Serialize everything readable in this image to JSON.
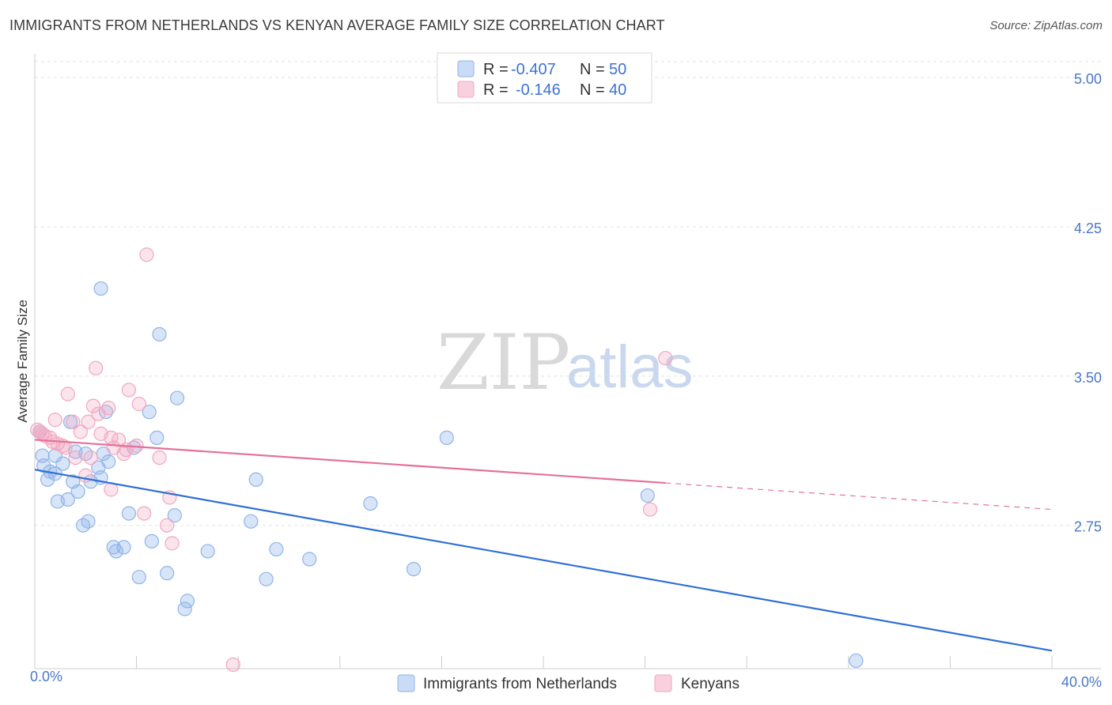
{
  "header": {
    "title": "IMMIGRANTS FROM NETHERLANDS VS KENYAN AVERAGE FAMILY SIZE CORRELATION CHART",
    "source": "Source: ZipAtlas.com"
  },
  "watermark": {
    "zip": "ZIP",
    "atlas": "atlas"
  },
  "legend_box": {
    "rows": [
      {
        "r_label": "R =",
        "r_value": "-0.407",
        "n_label": "N =",
        "n_value": "50",
        "color": "#8fb4ea"
      },
      {
        "r_label": "R =",
        "r_value": "-0.146",
        "n_label": "N =",
        "n_value": "40",
        "color": "#f2a7bf"
      }
    ]
  },
  "chart_data": {
    "type": "scatter",
    "title": "IMMIGRANTS FROM NETHERLANDS VS KENYAN AVERAGE FAMILY SIZE CORRELATION CHART",
    "xlabel": "",
    "ylabel": "Average Family Size",
    "xlim": [
      0,
      40
    ],
    "ylim": [
      2.03,
      5.08
    ],
    "x_tick_labels": [
      "0.0%",
      "40.0%"
    ],
    "y_ticks": [
      2.75,
      3.5,
      4.25,
      5.0
    ],
    "y_tick_labels": [
      "2.75",
      "3.50",
      "4.25",
      "5.00"
    ],
    "legend_position": "bottom",
    "series": [
      {
        "name": "Immigrants from Netherlands",
        "color": "#8fb4ea",
        "line_color": "#2f6fd4",
        "trend": {
          "x": [
            0,
            40
          ],
          "y": [
            3.03,
            2.12
          ],
          "dashed_from": null
        },
        "points": [
          [
            0.2,
            3.22
          ],
          [
            0.3,
            3.1
          ],
          [
            0.35,
            3.05
          ],
          [
            0.5,
            2.98
          ],
          [
            0.6,
            3.02
          ],
          [
            0.8,
            3.01
          ],
          [
            0.8,
            3.1
          ],
          [
            0.9,
            2.87
          ],
          [
            1.1,
            3.06
          ],
          [
            1.3,
            2.88
          ],
          [
            1.4,
            3.27
          ],
          [
            1.5,
            2.97
          ],
          [
            1.7,
            2.92
          ],
          [
            1.9,
            2.75
          ],
          [
            2.0,
            3.11
          ],
          [
            2.1,
            2.77
          ],
          [
            2.2,
            2.97
          ],
          [
            2.5,
            3.04
          ],
          [
            2.6,
            2.99
          ],
          [
            2.7,
            3.11
          ],
          [
            2.8,
            3.32
          ],
          [
            3.1,
            2.64
          ],
          [
            3.2,
            2.62
          ],
          [
            3.5,
            2.64
          ],
          [
            3.7,
            2.81
          ],
          [
            3.9,
            3.14
          ],
          [
            4.1,
            2.49
          ],
          [
            4.5,
            3.32
          ],
          [
            4.6,
            2.67
          ],
          [
            4.8,
            3.19
          ],
          [
            5.2,
            2.51
          ],
          [
            5.5,
            2.8
          ],
          [
            5.9,
            2.33
          ],
          [
            6.0,
            2.37
          ],
          [
            6.8,
            2.62
          ],
          [
            8.5,
            2.77
          ],
          [
            9.1,
            2.48
          ],
          [
            9.5,
            2.63
          ],
          [
            10.8,
            2.58
          ],
          [
            13.2,
            2.86
          ],
          [
            14.9,
            2.53
          ],
          [
            16.2,
            3.19
          ],
          [
            24.1,
            2.9
          ],
          [
            32.3,
            2.07
          ],
          [
            2.9,
            3.07
          ],
          [
            4.9,
            3.71
          ],
          [
            5.6,
            3.39
          ],
          [
            2.6,
            3.94
          ],
          [
            8.7,
            2.98
          ],
          [
            1.6,
            3.12
          ]
        ]
      },
      {
        "name": "Kenyans",
        "color": "#f2a7bf",
        "line_color": "#e5709a",
        "trend": {
          "x": [
            0,
            40
          ],
          "y": [
            3.18,
            2.83
          ],
          "solid_until": 24.8
        },
        "points": [
          [
            0.1,
            3.23
          ],
          [
            0.2,
            3.22
          ],
          [
            0.3,
            3.21
          ],
          [
            0.4,
            3.2
          ],
          [
            0.6,
            3.19
          ],
          [
            0.7,
            3.17
          ],
          [
            0.8,
            3.28
          ],
          [
            0.9,
            3.16
          ],
          [
            1.1,
            3.15
          ],
          [
            1.2,
            3.14
          ],
          [
            1.3,
            3.41
          ],
          [
            1.5,
            3.27
          ],
          [
            1.6,
            3.09
          ],
          [
            1.8,
            3.22
          ],
          [
            2.0,
            3.0
          ],
          [
            2.1,
            3.27
          ],
          [
            2.2,
            3.09
          ],
          [
            2.3,
            3.35
          ],
          [
            2.4,
            3.54
          ],
          [
            2.5,
            3.31
          ],
          [
            2.6,
            3.21
          ],
          [
            2.9,
            3.34
          ],
          [
            3.0,
            3.19
          ],
          [
            3.1,
            3.14
          ],
          [
            3.3,
            3.18
          ],
          [
            3.5,
            3.11
          ],
          [
            3.6,
            3.13
          ],
          [
            3.7,
            3.43
          ],
          [
            4.0,
            3.15
          ],
          [
            4.1,
            3.36
          ],
          [
            4.3,
            2.81
          ],
          [
            4.4,
            4.11
          ],
          [
            4.9,
            3.09
          ],
          [
            5.3,
            2.89
          ],
          [
            5.2,
            2.75
          ],
          [
            5.4,
            2.66
          ],
          [
            7.8,
            2.05
          ],
          [
            3.0,
            2.93
          ],
          [
            24.2,
            2.83
          ],
          [
            24.8,
            3.59
          ]
        ]
      }
    ]
  }
}
